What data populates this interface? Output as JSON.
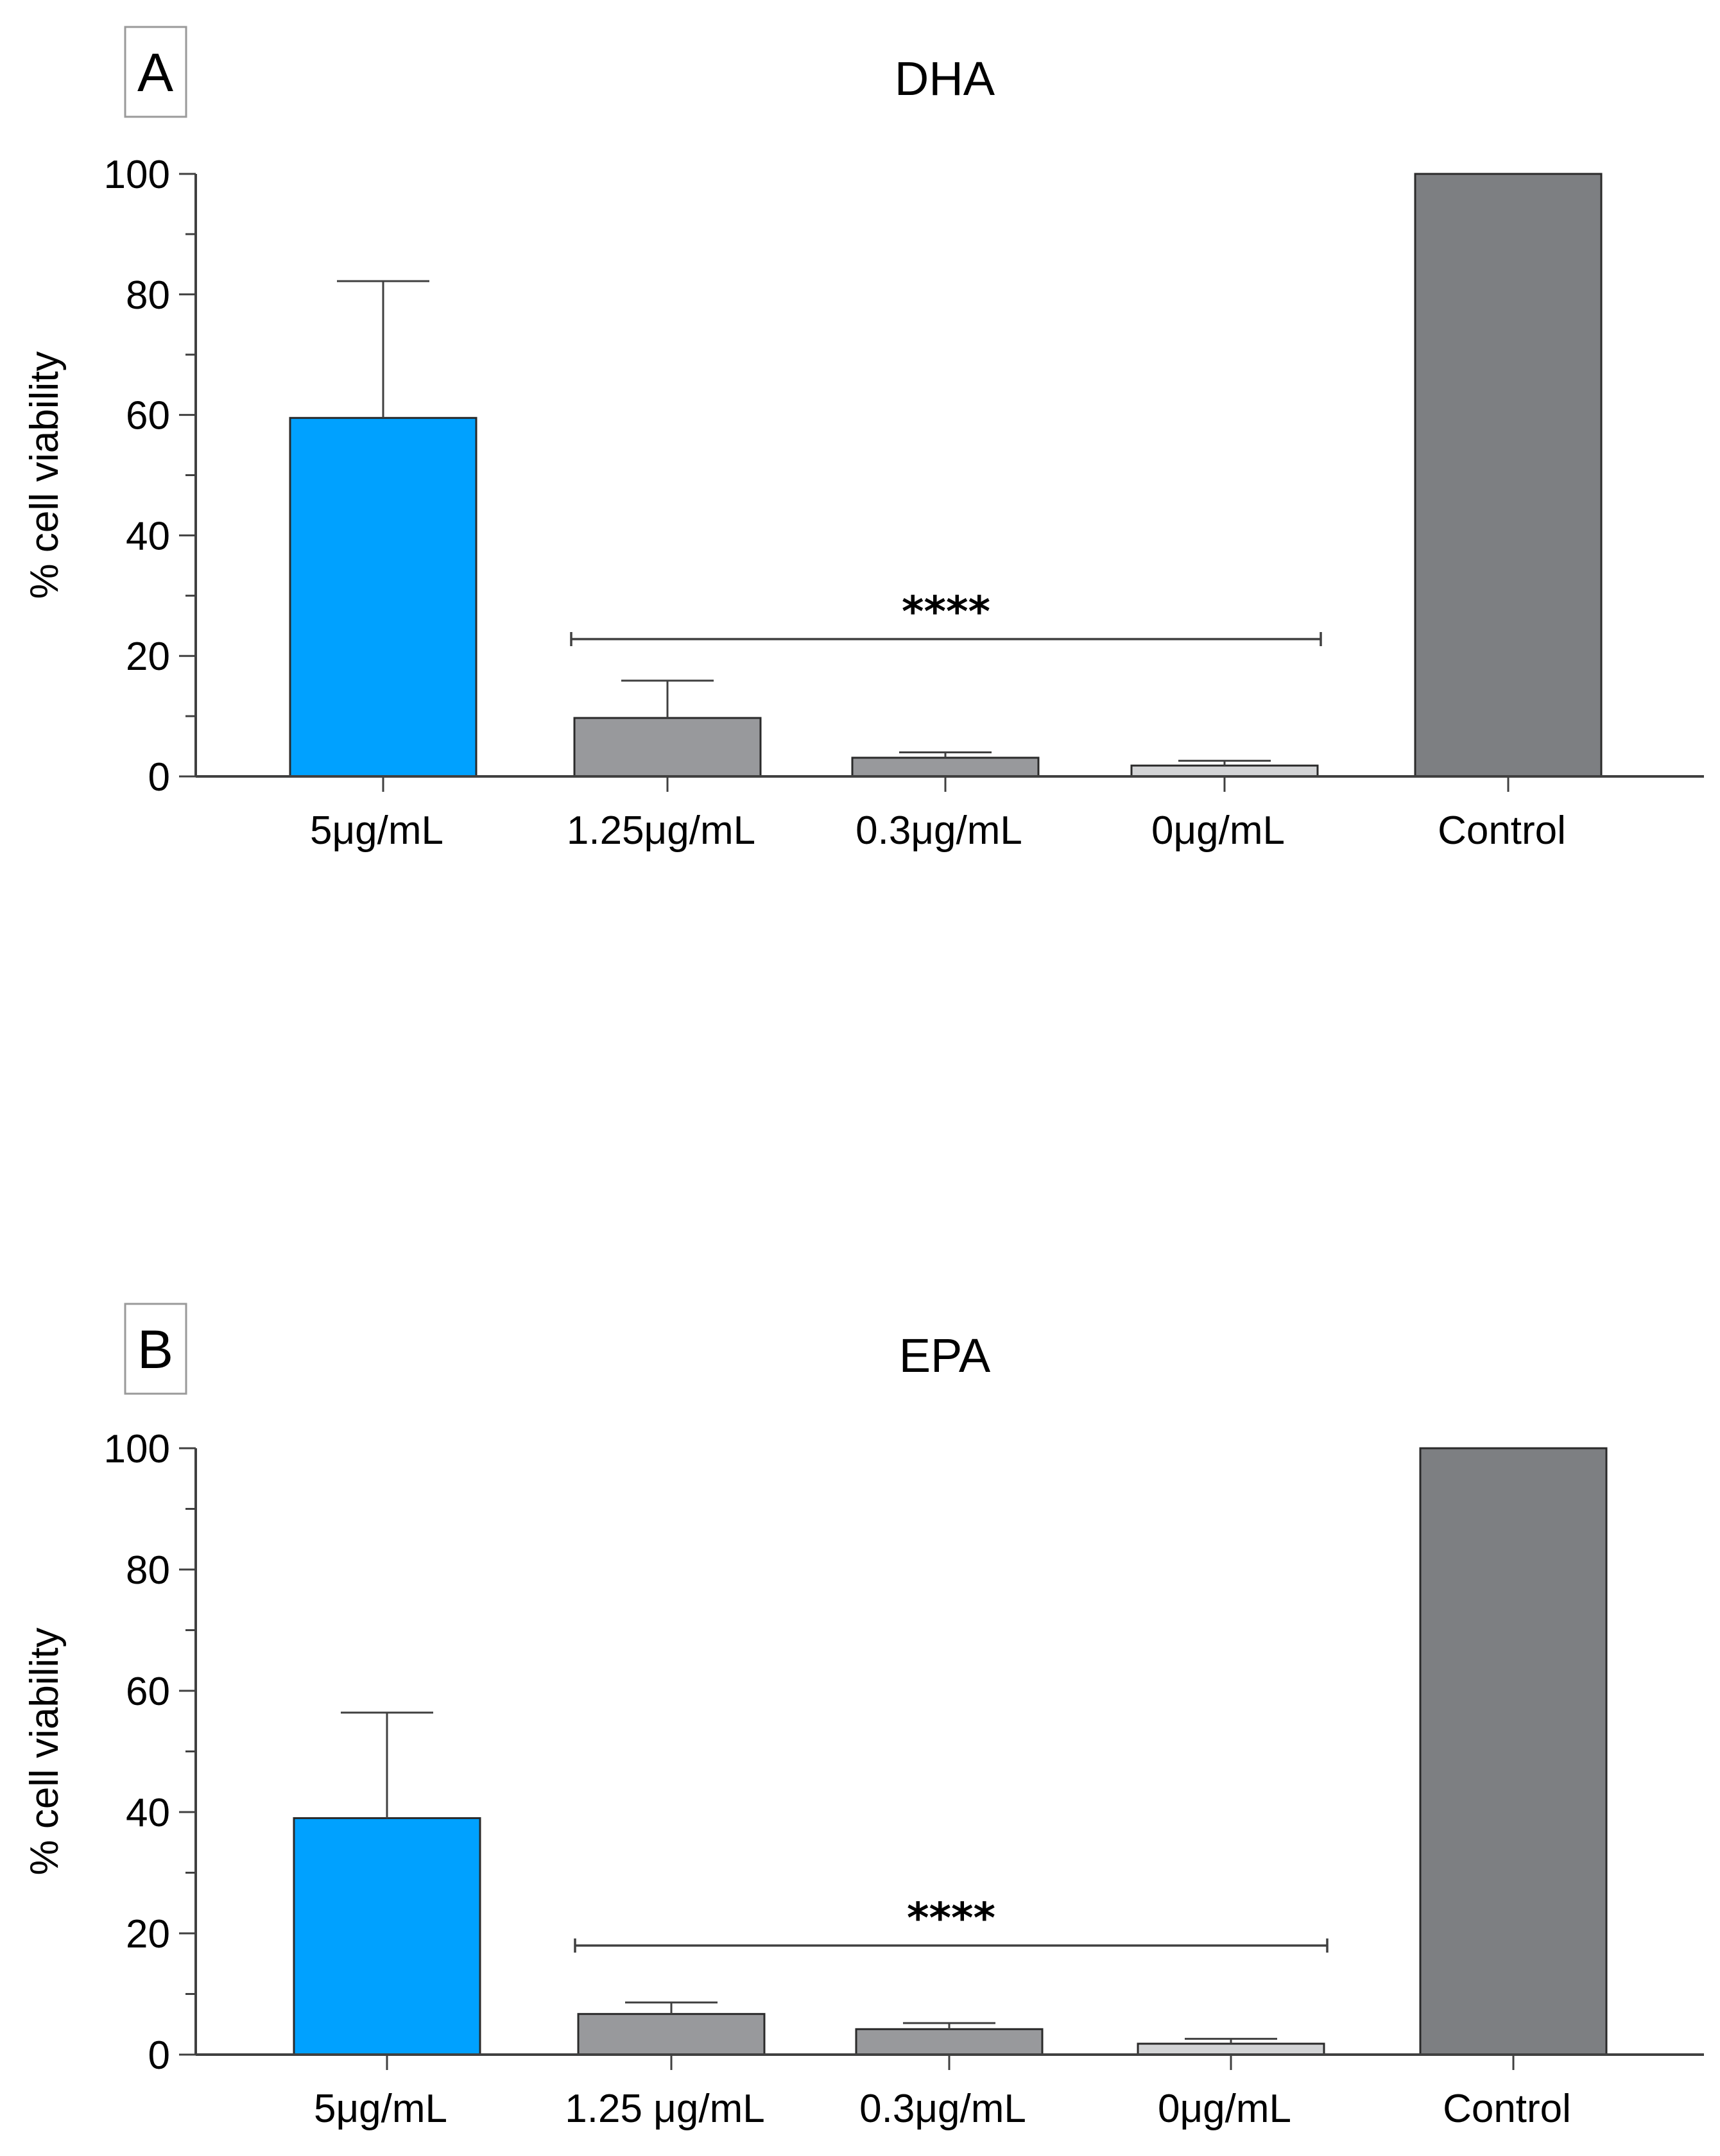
{
  "chart_data": [
    {
      "panel": "A",
      "type": "bar",
      "title": "DHA",
      "xlabel": "",
      "ylabel": "% cell viability",
      "ylim": [
        0,
        100
      ],
      "y_ticks": [
        0,
        20,
        40,
        60,
        80,
        100
      ],
      "categories": [
        "5μg/mL",
        "1.25μg/mL",
        "0.3μg/mL",
        "0μg/mL",
        "Control"
      ],
      "values": [
        59.5,
        9.7,
        3.1,
        1.8,
        100
      ],
      "error": [
        22.7,
        6.2,
        0.9,
        0.8,
        0
      ],
      "colors": [
        "#00a1ff",
        "#98999c",
        "#98999c",
        "#d3d4d6",
        "#7d7f82"
      ],
      "significance": {
        "label": "****",
        "from": 1,
        "to": 3,
        "y": 23
      }
    },
    {
      "panel": "B",
      "type": "bar",
      "title": "EPA",
      "xlabel": "",
      "ylabel": "% cell viability",
      "ylim": [
        0,
        100
      ],
      "y_ticks": [
        0,
        20,
        40,
        60,
        80,
        100
      ],
      "categories": [
        "5μg/mL",
        "1.25 μg/mL",
        "0.3μg/mL",
        "0μg/mL",
        "Control"
      ],
      "values": [
        39,
        6.7,
        4.2,
        1.8,
        100
      ],
      "error": [
        17.4,
        1.9,
        1.0,
        0.8,
        0
      ],
      "colors": [
        "#00a1ff",
        "#98999c",
        "#98999c",
        "#d3d4d6",
        "#7d7f82"
      ],
      "significance": {
        "label": "****",
        "from": 1,
        "to": 3,
        "y": 18
      }
    }
  ]
}
